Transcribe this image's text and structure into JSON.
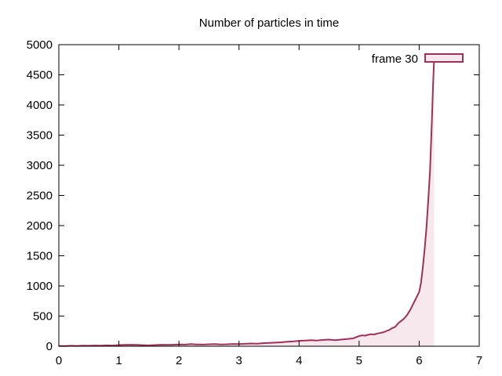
{
  "chart_data": {
    "type": "area",
    "title": "Number of particles in time",
    "xlabel": "",
    "ylabel": "",
    "xlim": [
      0,
      7
    ],
    "ylim": [
      0,
      5000
    ],
    "xticks": [
      "0",
      "1",
      "2",
      "3",
      "4",
      "5",
      "6",
      "7"
    ],
    "yticks": [
      "0",
      "500",
      "1000",
      "1500",
      "2000",
      "2500",
      "3000",
      "3500",
      "4000",
      "4500",
      "5000"
    ],
    "grid": false,
    "legend_position": "top-right",
    "series": [
      {
        "name": "frame 30",
        "line_color": "#a0305a",
        "fill_color": "#f7e8ee",
        "x": [
          0,
          0.1,
          0.2,
          0.3,
          0.4,
          0.5,
          0.6,
          0.7,
          0.8,
          0.9,
          1.0,
          1.1,
          1.2,
          1.3,
          1.4,
          1.5,
          1.6,
          1.7,
          1.8,
          1.9,
          2.0,
          2.1,
          2.2,
          2.3,
          2.4,
          2.5,
          2.6,
          2.7,
          2.8,
          2.9,
          3.0,
          3.1,
          3.2,
          3.3,
          3.4,
          3.5,
          3.6,
          3.7,
          3.8,
          3.9,
          4.0,
          4.1,
          4.2,
          4.3,
          4.4,
          4.5,
          4.6,
          4.7,
          4.8,
          4.9,
          5.0,
          5.05,
          5.1,
          5.15,
          5.2,
          5.25,
          5.3,
          5.35,
          5.4,
          5.45,
          5.5,
          5.55,
          5.6,
          5.65,
          5.7,
          5.75,
          5.8,
          5.85,
          5.9,
          5.95,
          6.0,
          6.03,
          6.06,
          6.09,
          6.12,
          6.15,
          6.18,
          6.21,
          6.23,
          6.25
        ],
        "values": [
          5,
          3,
          8,
          5,
          10,
          8,
          12,
          10,
          15,
          12,
          20,
          22,
          25,
          22,
          18,
          15,
          20,
          25,
          22,
          25,
          30,
          28,
          35,
          30,
          28,
          32,
          35,
          30,
          32,
          38,
          35,
          40,
          45,
          42,
          50,
          55,
          60,
          65,
          75,
          80,
          90,
          95,
          100,
          95,
          105,
          110,
          100,
          110,
          120,
          130,
          170,
          180,
          175,
          190,
          200,
          195,
          210,
          220,
          230,
          250,
          270,
          300,
          320,
          380,
          420,
          460,
          520,
          600,
          700,
          800,
          900,
          1050,
          1300,
          1600,
          1950,
          2400,
          2900,
          3700,
          4300,
          4800
        ]
      }
    ]
  }
}
